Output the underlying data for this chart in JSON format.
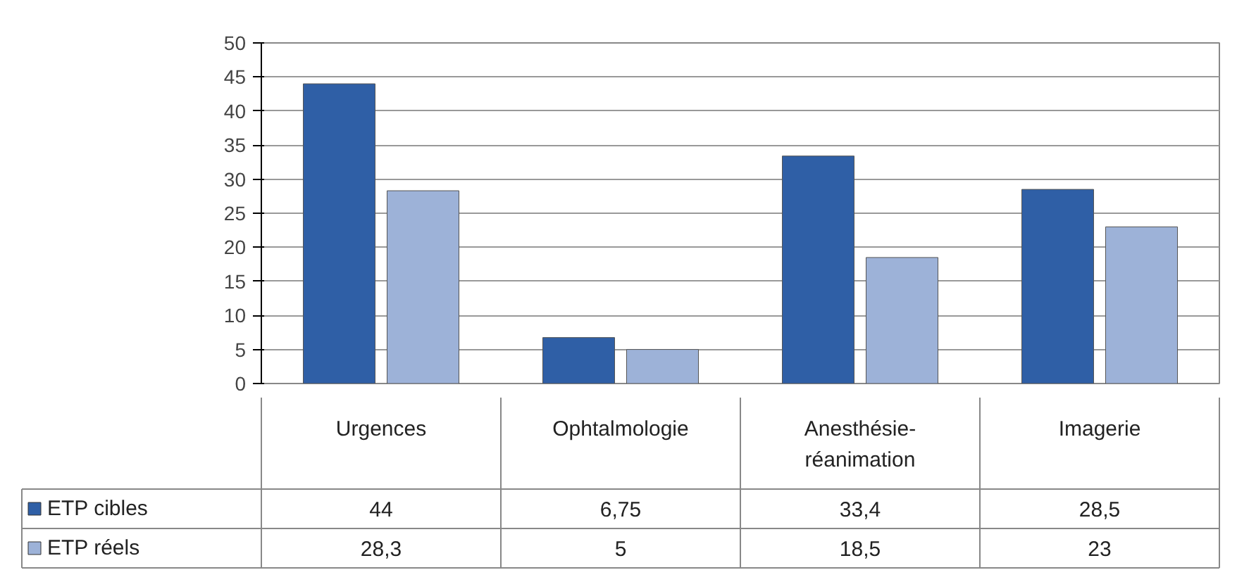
{
  "chart_data": {
    "type": "bar",
    "categories": [
      "Urgences",
      "Ophtalmologie",
      "Anesthésie-\nréanimation",
      "Imagerie"
    ],
    "series": [
      {
        "name": "ETP cibles",
        "color": "#2f5fa6",
        "values": [
          44,
          6.75,
          33.4,
          28.5
        ],
        "value_labels": [
          "44",
          "6,75",
          "33,4",
          "28,5"
        ]
      },
      {
        "name": "ETP réels",
        "color": "#9db2d8",
        "values": [
          28.3,
          5,
          18.5,
          23
        ],
        "value_labels": [
          "28,3",
          "5",
          "18,5",
          "23"
        ]
      }
    ],
    "ylim": [
      0,
      50
    ],
    "yticks": [
      0,
      5,
      10,
      15,
      20,
      25,
      30,
      35,
      40,
      45,
      50
    ],
    "grid": "y",
    "legend": "bottom"
  }
}
